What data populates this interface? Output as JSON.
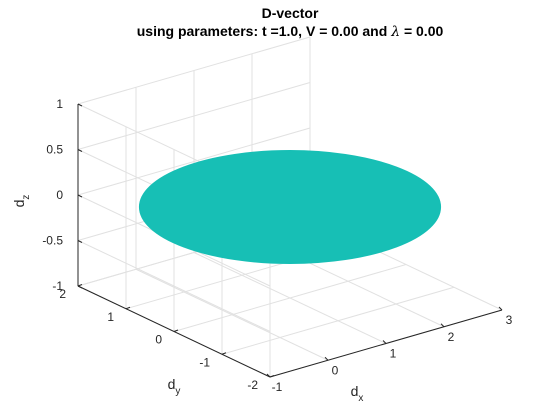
{
  "chart_data": {
    "type": "surface-3d",
    "title": "D-vector",
    "subtitle_prefix": "using parameters: t =1.0, V = 0.00 and ",
    "subtitle_symbol": "λ",
    "subtitle_suffix": " = 0.00",
    "xlabel": {
      "base": "d",
      "sub": "x"
    },
    "ylabel": {
      "base": "d",
      "sub": "y"
    },
    "zlabel": {
      "base": "d",
      "sub": "z"
    },
    "xlim": [
      -1,
      3
    ],
    "ylim": [
      -2,
      2
    ],
    "zlim": [
      -1,
      1
    ],
    "xticks": [
      "-1",
      "0",
      "1",
      "2",
      "3"
    ],
    "yticks": [
      "-2",
      "-1",
      "0",
      "1",
      "2"
    ],
    "zticks": [
      "-1",
      "-0.5",
      "0",
      "0.5",
      "1"
    ],
    "grid": true,
    "surface": {
      "shape": "disk",
      "center": {
        "x": 1,
        "y": 0,
        "z": 0
      },
      "radius": 2,
      "color": "#17bfb5"
    },
    "colors": {
      "axis": "#262626",
      "grid": "#e1e1e1",
      "background": "#ffffff"
    }
  }
}
